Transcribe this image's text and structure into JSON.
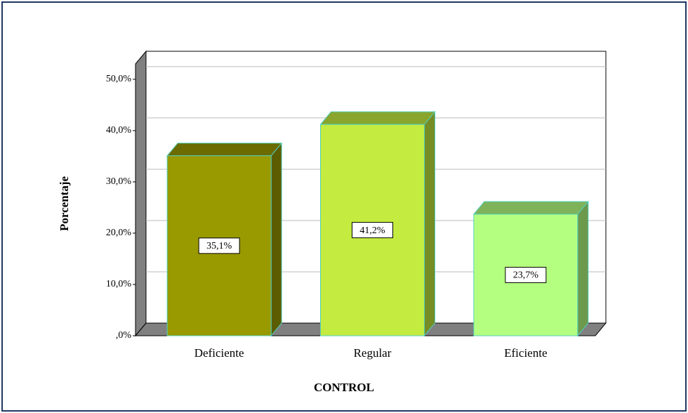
{
  "chart_data": {
    "type": "bar3d",
    "xlabel": "CONTROL",
    "ylabel": "Porcentaje",
    "categories": [
      "Deficiente",
      "Regular",
      "Eficiente"
    ],
    "values": [
      35.1,
      41.2,
      23.7
    ],
    "value_labels": [
      "35,1%",
      "41,2%",
      "23,7%"
    ],
    "colors": [
      "#999900",
      "#c4eb40",
      "#b5ff80"
    ],
    "ylim": [
      0,
      53
    ],
    "yticks": [
      {
        "value": 0,
        "label": ",0%"
      },
      {
        "value": 10,
        "label": "10,0%"
      },
      {
        "value": 20,
        "label": "20,0%"
      },
      {
        "value": 30,
        "label": "30,0%"
      },
      {
        "value": 40,
        "label": "40,0%"
      },
      {
        "value": 50,
        "label": "50,0%"
      }
    ],
    "grid": true
  }
}
